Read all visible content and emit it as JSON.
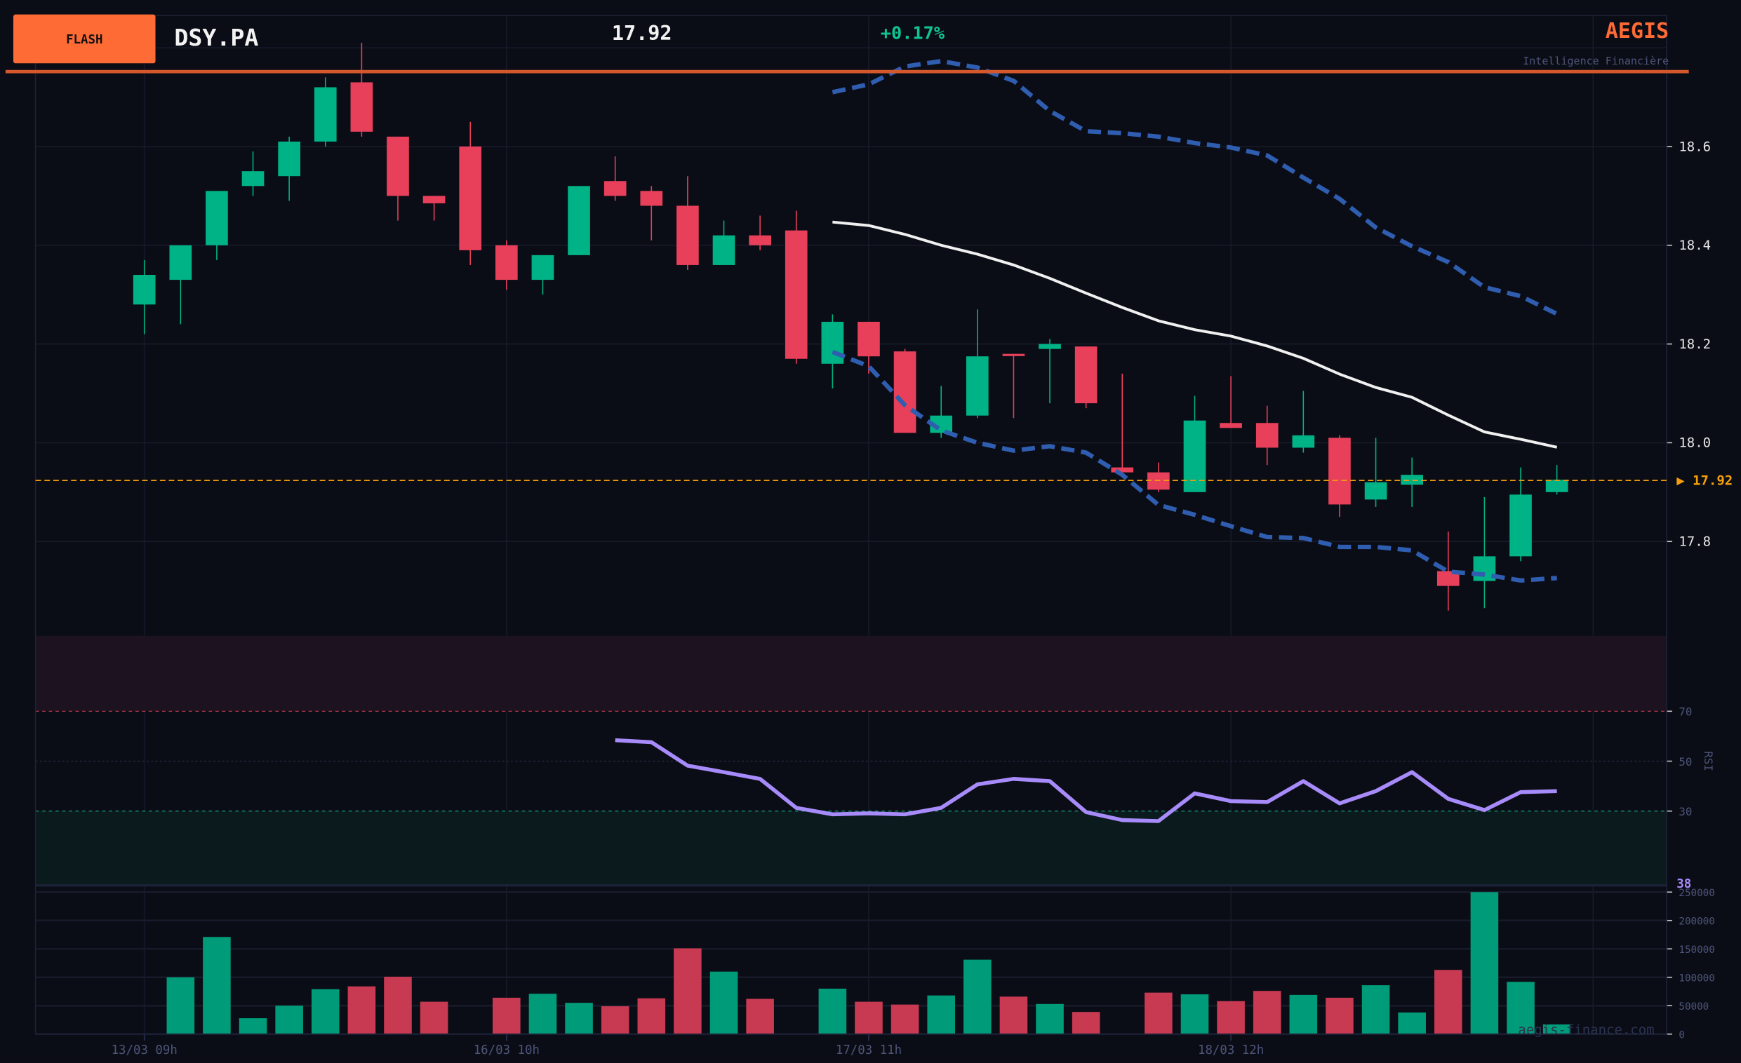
{
  "header": {
    "badge": "FLASH",
    "ticker": "DSY.PA",
    "price": "17.92",
    "change": "+0.17%",
    "brand": "AEGIS",
    "tagline": "Intelligence Financière",
    "current_price_label": "▶ 17.92",
    "rsi_label": "RSI",
    "rsi_current": "38",
    "watermark": "aegis-finance.com"
  },
  "colors": {
    "up": "#00b386",
    "down": "#e8405a",
    "accent": "#ff6b35",
    "bb_outer": "#2f5db0",
    "bb_mid": "#f0f0f0",
    "rsi": "#a78bfa",
    "price_line": "#f59e0b"
  },
  "chart_data": [
    {
      "type": "candlestick",
      "title": "DSY.PA",
      "ylim": [
        17.62,
        18.86
      ],
      "yticks": [
        "17.8",
        "18.0",
        "18.2",
        "18.4",
        "18.6"
      ],
      "xticks": [
        {
          "index": 0,
          "label": "13/03 09h"
        },
        {
          "index": 10,
          "label": "16/03 10h"
        },
        {
          "index": 20,
          "label": "17/03 11h"
        },
        {
          "index": 30,
          "label": "18/03 12h"
        }
      ],
      "current_price": 17.92,
      "candles": [
        [
          18.28,
          18.37,
          18.22,
          18.34
        ],
        [
          18.33,
          18.4,
          18.24,
          18.4
        ],
        [
          18.4,
          18.51,
          18.37,
          18.51
        ],
        [
          18.52,
          18.59,
          18.5,
          18.55
        ],
        [
          18.54,
          18.62,
          18.49,
          18.61
        ],
        [
          18.61,
          18.74,
          18.6,
          18.72
        ],
        [
          18.73,
          18.81,
          18.62,
          18.63
        ],
        [
          18.62,
          18.62,
          18.45,
          18.5
        ],
        [
          18.5,
          18.5,
          18.45,
          18.485
        ],
        [
          18.6,
          18.65,
          18.36,
          18.39
        ],
        [
          18.4,
          18.41,
          18.31,
          18.33
        ],
        [
          18.33,
          18.38,
          18.3,
          18.38
        ],
        [
          18.38,
          18.52,
          18.38,
          18.52
        ],
        [
          18.53,
          18.58,
          18.49,
          18.5
        ],
        [
          18.51,
          18.52,
          18.41,
          18.48
        ],
        [
          18.48,
          18.54,
          18.35,
          18.36
        ],
        [
          18.36,
          18.45,
          18.36,
          18.42
        ],
        [
          18.42,
          18.46,
          18.39,
          18.4
        ],
        [
          18.43,
          18.47,
          18.16,
          18.17
        ],
        [
          18.16,
          18.26,
          18.11,
          18.245
        ],
        [
          18.245,
          18.245,
          18.14,
          18.175
        ],
        [
          18.185,
          18.19,
          18.02,
          18.02
        ],
        [
          18.02,
          18.115,
          18.01,
          18.055
        ],
        [
          18.055,
          18.27,
          18.05,
          18.175
        ],
        [
          18.18,
          18.18,
          18.05,
          18.177
        ],
        [
          18.19,
          18.21,
          18.08,
          18.2
        ],
        [
          18.195,
          18.195,
          18.07,
          18.08
        ],
        [
          17.95,
          18.14,
          17.94,
          17.94
        ],
        [
          17.94,
          17.96,
          17.9,
          17.905
        ],
        [
          17.9,
          18.095,
          17.9,
          18.045
        ],
        [
          18.04,
          18.135,
          18.03,
          18.03
        ],
        [
          18.04,
          18.075,
          17.955,
          17.99
        ],
        [
          17.99,
          18.105,
          17.98,
          18.015
        ],
        [
          18.01,
          18.015,
          17.85,
          17.875
        ],
        [
          17.885,
          18.01,
          17.87,
          17.92
        ],
        [
          17.915,
          17.97,
          17.87,
          17.935
        ],
        [
          17.74,
          17.82,
          17.66,
          17.71
        ],
        [
          17.72,
          17.89,
          17.665,
          17.77
        ],
        [
          17.77,
          17.95,
          17.76,
          17.895
        ],
        [
          17.9,
          17.955,
          17.895,
          17.925
        ]
      ],
      "bollinger_start_index": 19,
      "bollinger_upper": [
        18.71,
        18.726,
        18.762,
        18.773,
        18.76,
        18.733,
        18.672,
        18.631,
        18.627,
        18.62,
        18.607,
        18.598,
        18.582,
        18.537,
        18.494,
        18.436,
        18.398,
        18.366,
        18.315,
        18.297,
        18.261
      ],
      "bollinger_middle": [
        18.447,
        18.44,
        18.422,
        18.4,
        18.382,
        18.36,
        18.333,
        18.303,
        18.274,
        18.247,
        18.229,
        18.216,
        18.196,
        18.171,
        18.139,
        18.112,
        18.092,
        18.056,
        18.022,
        18.007,
        17.991
      ],
      "bollinger_lower": [
        18.184,
        18.155,
        18.076,
        18.025,
        18.0,
        17.984,
        17.993,
        17.98,
        17.935,
        17.874,
        17.854,
        17.831,
        17.809,
        17.807,
        17.789,
        17.789,
        17.782,
        17.739,
        17.733,
        17.721,
        17.726
      ]
    },
    {
      "type": "line",
      "title": "RSI",
      "ylim": [
        0,
        100
      ],
      "yticks": [
        "30",
        "50",
        "70"
      ],
      "overbought": 70,
      "oversold": 30,
      "start_index": 13,
      "values": [
        58.4,
        57.6,
        48.2,
        45.6,
        42.9,
        31.3,
        28.7,
        29.1,
        28.7,
        31.3,
        40.7,
        42.9,
        42.0,
        29.6,
        26.4,
        26.0,
        37.1,
        34.0,
        33.6,
        42.0,
        33.1,
        38.0,
        45.6,
        34.9,
        30.4,
        37.6,
        38.0
      ]
    },
    {
      "type": "bar",
      "title": "Volume",
      "ylim": [
        0,
        250000
      ],
      "yticks": [
        "0",
        "50000",
        "100000",
        "150000",
        "200000",
        "250000"
      ],
      "values": [
        0,
        100000,
        171000,
        28000,
        50000,
        79000,
        84000,
        101000,
        57000,
        0,
        64000,
        71000,
        55000,
        49000,
        63000,
        151000,
        110000,
        62000,
        0,
        80000,
        57000,
        52000,
        68000,
        131000,
        66000,
        53000,
        39000,
        0,
        73000,
        70000,
        58000,
        76000,
        69000,
        64000,
        86000,
        38000,
        113000,
        250000,
        92000,
        17000
      ]
    }
  ]
}
